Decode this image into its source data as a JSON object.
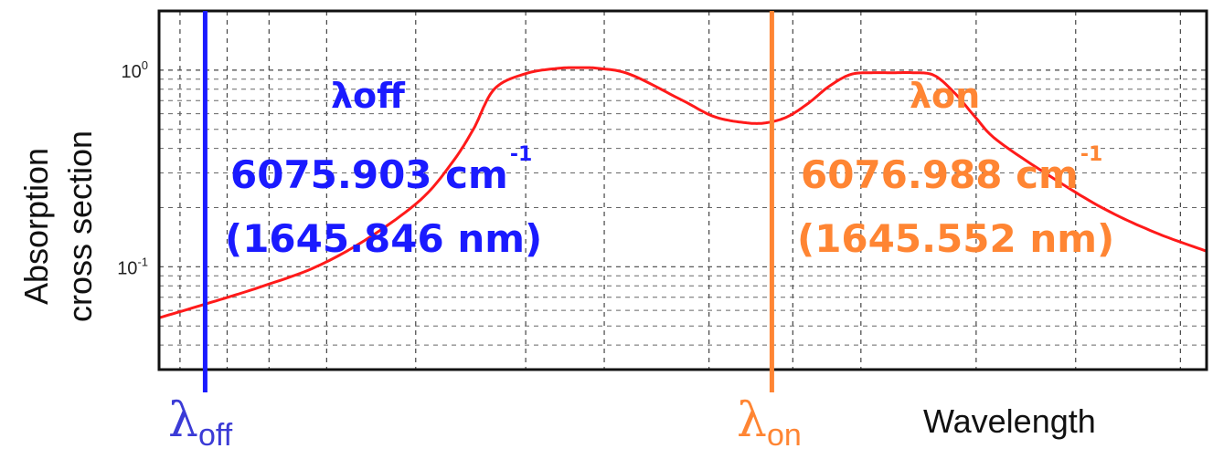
{
  "chart_data": {
    "type": "line",
    "title": "",
    "ylabel_lines": [
      "Absorption",
      "cross section"
    ],
    "xlabel": "Wavelength",
    "yscale": "log",
    "ylim": [
      0.03,
      2.0
    ],
    "xlim": [
      0,
      1
    ],
    "y_ticks": [
      {
        "value": 1.0,
        "base": "10",
        "exp": "0"
      },
      {
        "value": 0.1,
        "base": "10",
        "exp": "-1"
      }
    ],
    "grid": true,
    "series": [
      {
        "color": "#ff1a1a",
        "x": [
          0.0,
          0.05,
          0.1,
          0.15,
          0.2,
          0.25,
          0.28,
          0.3,
          0.32,
          0.35,
          0.38,
          0.4,
          0.42,
          0.45,
          0.5,
          0.53,
          0.56,
          0.58,
          0.6,
          0.62,
          0.64,
          0.66,
          0.68,
          0.7,
          0.72,
          0.74,
          0.76,
          0.78,
          0.8,
          0.85,
          0.9,
          0.95,
          1.0
        ],
        "y": [
          0.055,
          0.066,
          0.08,
          0.1,
          0.14,
          0.22,
          0.34,
          0.5,
          0.8,
          0.96,
          1.02,
          1.03,
          1.02,
          0.95,
          0.7,
          0.58,
          0.54,
          0.54,
          0.58,
          0.68,
          0.83,
          0.95,
          0.97,
          0.97,
          0.97,
          0.94,
          0.76,
          0.57,
          0.44,
          0.29,
          0.2,
          0.15,
          0.12
        ]
      }
    ],
    "markers": [
      {
        "id": "off",
        "x": 0.044,
        "color": "#1a1aff",
        "axis_label": {
          "symbol": "λ",
          "sub": "off"
        },
        "title": "λoff",
        "wavenumber": "6075.903 cm",
        "wavenumber_exp": "-1",
        "wavelength": "(1645.846 nm)"
      },
      {
        "id": "on",
        "x": 0.585,
        "color": "#ff8533",
        "axis_label": {
          "symbol": "λ",
          "sub": "on"
        },
        "title": "λon",
        "wavenumber": "6076.988 cm",
        "wavenumber_exp": "-1",
        "wavelength": "(1645.552 nm)"
      }
    ]
  }
}
